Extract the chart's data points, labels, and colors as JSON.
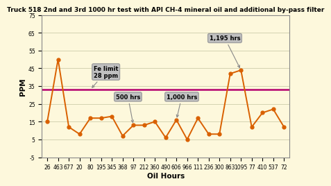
{
  "title": "Truck 518 2nd and 3rd 1000 hr test with API CH-4 mineral oil and additional by-pass filter",
  "xlabel": "Oil Hours",
  "ylabel": "PPM",
  "x_labels": [
    "26",
    "463",
    "677",
    "20",
    "80",
    "195",
    "345",
    "368",
    "97",
    "212",
    "360",
    "490",
    "606",
    "966",
    "111",
    "236",
    "300",
    "863",
    "1095",
    "77",
    "410",
    "537",
    "72"
  ],
  "y_values": [
    15,
    50,
    12,
    8,
    17,
    17,
    18,
    7,
    13,
    13,
    15,
    6,
    16,
    5,
    17,
    8,
    8,
    42,
    44,
    12,
    20,
    22,
    12
  ],
  "ylim": [
    -5,
    75
  ],
  "yticks": [
    75,
    65,
    55,
    45,
    35,
    25,
    15,
    5,
    -5
  ],
  "fe_limit": 33,
  "fe_limit_color": "#b5006e",
  "line_color": "#d96000",
  "marker_color": "#d96000",
  "bg_color": "#fdf8dc",
  "grid_color": "#ccccaa",
  "ann_box_color": "#c0c0c0",
  "ann_edge_color": "#a0a0a0",
  "title_fontsize": 6.5,
  "tick_fontsize": 5.5,
  "label_fontsize": 7.5,
  "ann_fontsize": 6.0
}
